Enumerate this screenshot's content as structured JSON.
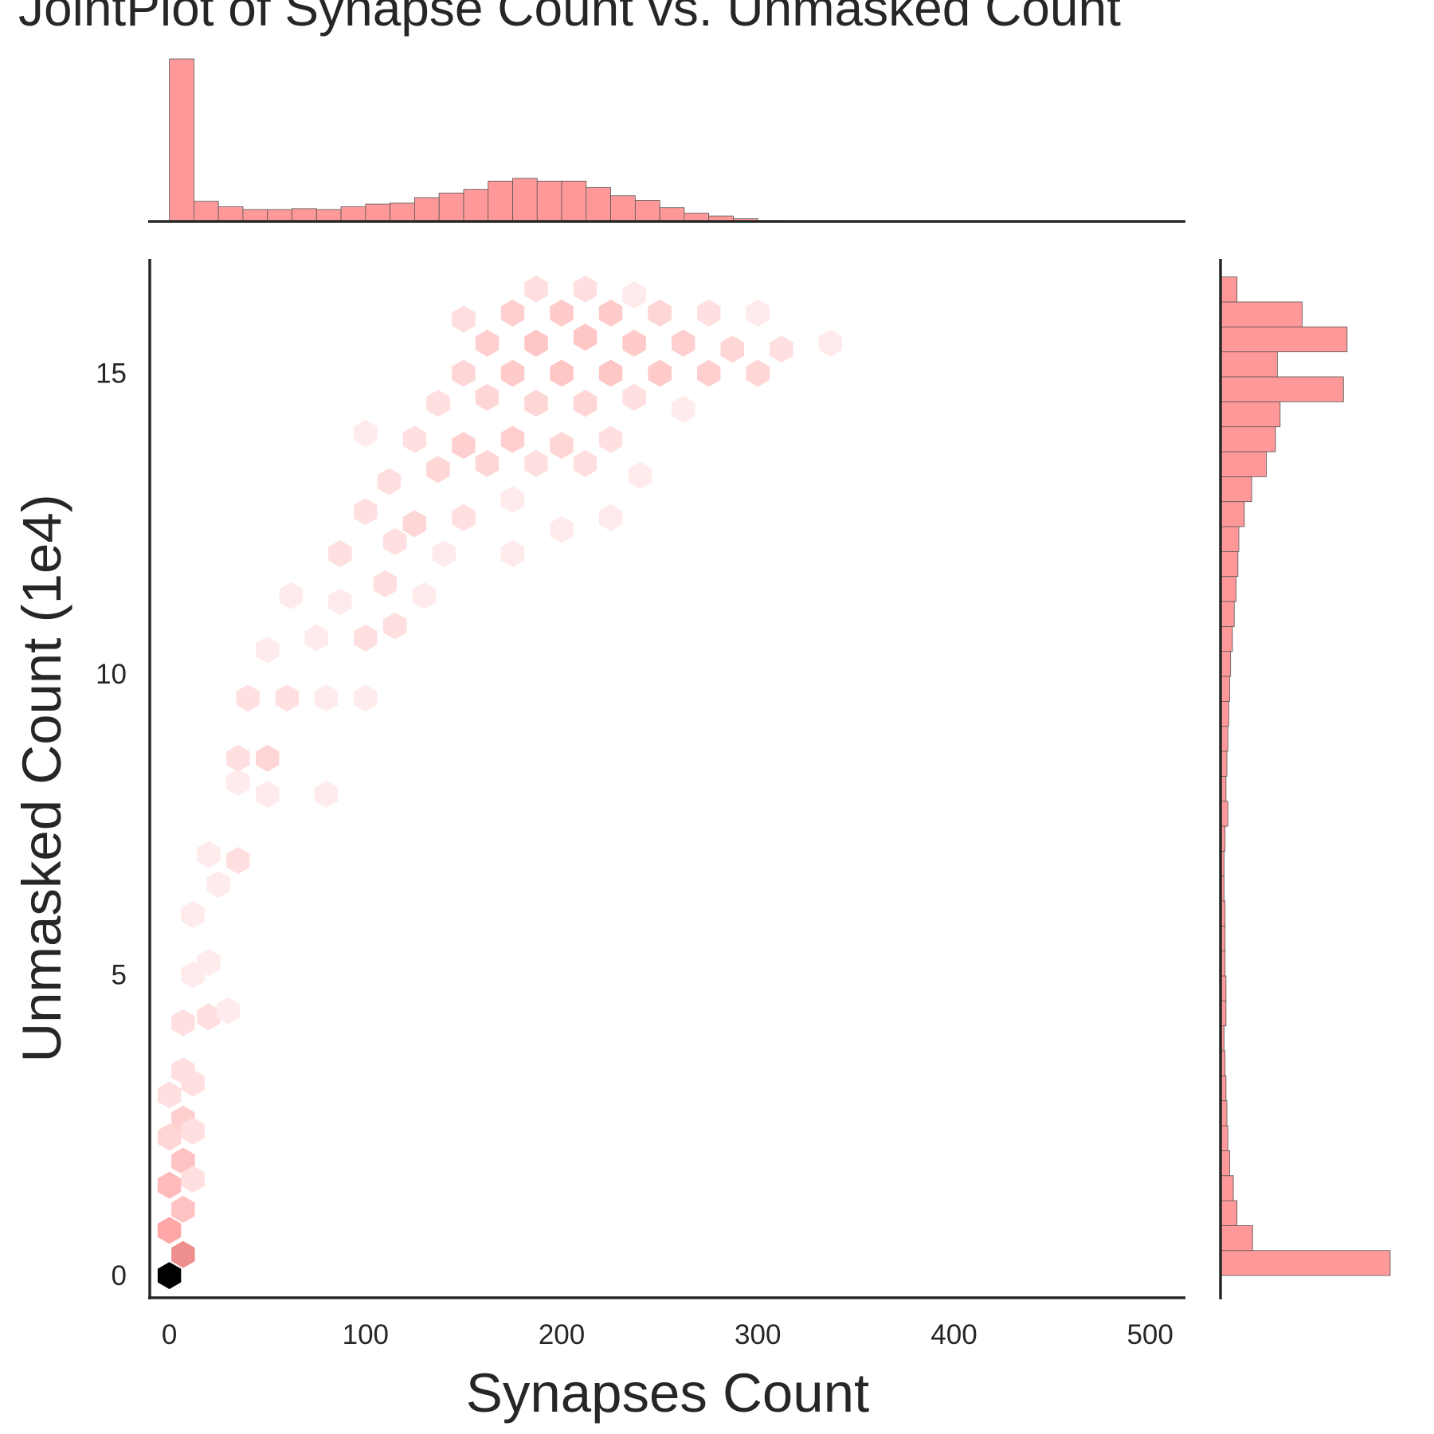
{
  "chart_data": [
    {
      "type": "hexbin",
      "title": "JointPlot of Synapse Count vs. Unmasked Count",
      "x_label": "Synapses Count",
      "y_label": "Unmasked Count (1e4)",
      "xlim": [
        -10,
        518
      ],
      "ylim": [
        -0.37,
        16.9
      ],
      "xticks": [
        0,
        100,
        200,
        300,
        400,
        500
      ],
      "yticks": [
        0,
        5,
        10,
        15
      ],
      "cmap": [
        "#ffffff",
        "#ff9999",
        "#000000"
      ],
      "color_scale": "log",
      "series": [
        {
          "name": "hexbin",
          "x": [
            0,
            7,
            0,
            7,
            0,
            7,
            12,
            0,
            7,
            12,
            0,
            7,
            12,
            7,
            20,
            30,
            12,
            20,
            12,
            25,
            20,
            35,
            35,
            50,
            35,
            50,
            80,
            40,
            60,
            80,
            100,
            50,
            75,
            100,
            115,
            62,
            87,
            110,
            130,
            87,
            115,
            140,
            175,
            100,
            125,
            150,
            175,
            112,
            137,
            162,
            187,
            212,
            240,
            150,
            175,
            200,
            225,
            137,
            162,
            187,
            212,
            237,
            262,
            150,
            175,
            200,
            225,
            250,
            275,
            300,
            162,
            187,
            212,
            237,
            262,
            287,
            312,
            337,
            150,
            175,
            200,
            225,
            250,
            275,
            300,
            187,
            212,
            237,
            100,
            125,
            200,
            225
          ],
          "y": [
            0,
            0.35,
            0.75,
            1.1,
            1.5,
            1.9,
            1.6,
            2.3,
            2.6,
            2.4,
            3.0,
            3.4,
            3.2,
            4.2,
            4.3,
            4.4,
            5.0,
            5.2,
            6.0,
            6.5,
            7.0,
            6.9,
            8.2,
            8.0,
            8.6,
            8.6,
            8.0,
            9.6,
            9.6,
            9.6,
            9.6,
            10.4,
            10.6,
            10.6,
            10.8,
            11.3,
            11.2,
            11.5,
            11.3,
            12.0,
            12.2,
            12.0,
            12.0,
            12.7,
            12.5,
            12.6,
            12.9,
            13.2,
            13.4,
            13.5,
            13.5,
            13.5,
            13.3,
            13.8,
            13.9,
            13.8,
            13.9,
            14.5,
            14.6,
            14.5,
            14.5,
            14.6,
            14.4,
            15.0,
            15.0,
            15.0,
            15.0,
            15.0,
            15.0,
            15.0,
            15.5,
            15.5,
            15.6,
            15.5,
            15.5,
            15.4,
            15.4,
            15.5,
            15.9,
            16.0,
            16.0,
            16.0,
            16.0,
            16.0,
            16.0,
            16.4,
            16.4,
            16.3,
            14.0,
            13.9,
            12.4,
            12.6
          ],
          "counts": [
            1000,
            40,
            20,
            8,
            10,
            8,
            3,
            4,
            5,
            3,
            3,
            3,
            3,
            3,
            3,
            2,
            2,
            2,
            2,
            2,
            2,
            3,
            2,
            2,
            3,
            4,
            2,
            3,
            3,
            2,
            2,
            2,
            2,
            3,
            3,
            2,
            2,
            3,
            2,
            3,
            3,
            2,
            2,
            3,
            4,
            3,
            2,
            3,
            4,
            4,
            3,
            3,
            2,
            5,
            5,
            4,
            3,
            3,
            4,
            4,
            4,
            3,
            2,
            4,
            6,
            7,
            7,
            6,
            5,
            4,
            5,
            7,
            7,
            6,
            5,
            4,
            3,
            2,
            3,
            5,
            6,
            6,
            4,
            3,
            2,
            3,
            3,
            2,
            2,
            3,
            2,
            2
          ]
        }
      ]
    },
    {
      "type": "histogram",
      "orientation": "vertical",
      "color": "#ff9999",
      "xlim": [
        -10,
        518
      ],
      "bins": [
        0,
        12.5,
        25,
        37.5,
        50,
        62.5,
        75,
        87.5,
        100,
        112.5,
        125,
        137.5,
        150,
        162.5,
        175,
        187.5,
        200,
        212.5,
        225,
        237.5,
        250,
        262.5,
        275,
        287.5,
        300,
        312.5,
        325,
        337.5,
        350,
        362.5,
        375,
        387.5,
        400,
        412.5,
        425,
        437.5,
        450,
        462.5,
        475,
        487.5,
        500
      ],
      "counts": [
        177,
        22,
        16,
        13,
        13,
        14,
        13,
        16,
        19,
        20,
        26,
        31,
        35,
        44,
        47,
        44,
        44,
        37,
        28,
        23,
        15,
        9,
        6,
        3,
        1,
        0.5,
        0,
        0,
        0,
        0,
        0,
        0,
        0,
        0,
        0,
        0,
        0,
        0,
        0,
        0
      ]
    },
    {
      "type": "histogram",
      "orientation": "horizontal",
      "color": "#ff9999",
      "ylim": [
        -0.37,
        16.9
      ],
      "bins": [
        0,
        0.415,
        0.83,
        1.245,
        1.66,
        2.075,
        2.49,
        2.905,
        3.32,
        3.735,
        4.15,
        4.565,
        4.98,
        5.395,
        5.81,
        6.225,
        6.64,
        7.055,
        7.47,
        7.885,
        8.3,
        8.715,
        9.13,
        9.545,
        9.96,
        10.375,
        10.79,
        11.205,
        11.62,
        12.035,
        12.45,
        12.865,
        13.28,
        13.695,
        14.11,
        14.525,
        14.94,
        15.355,
        15.77,
        16.185,
        16.6
      ],
      "counts": [
        185,
        35,
        18,
        14,
        10,
        8,
        7,
        6,
        5,
        4,
        6,
        6,
        5,
        5,
        5,
        4,
        4,
        5,
        8,
        6,
        7,
        8,
        9,
        10,
        11,
        13,
        15,
        17,
        19,
        20,
        26,
        34,
        50,
        60,
        65,
        134,
        62,
        138,
        89,
        18
      ]
    }
  ]
}
